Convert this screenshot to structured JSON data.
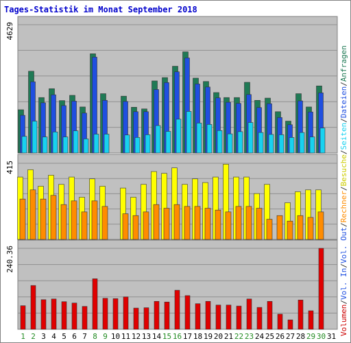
{
  "chart_data": {
    "type": "bar",
    "title": "Tages-Statistik im Monat September 2018",
    "days": [
      "1",
      "2",
      "3",
      "4",
      "5",
      "6",
      "7",
      "8",
      "9",
      "10",
      "11",
      "12",
      "13",
      "14",
      "15",
      "16",
      "17",
      "18",
      "19",
      "20",
      "21",
      "22",
      "23",
      "24",
      "25",
      "26",
      "27",
      "28",
      "29",
      "30",
      "31"
    ],
    "weekend_days": [
      "1",
      "2",
      "8",
      "9",
      "15",
      "16",
      "22",
      "23",
      "29",
      "30"
    ],
    "panels": [
      {
        "id": "top",
        "y_max_label": "4629",
        "ylim": [
          0,
          4629
        ],
        "series": [
          {
            "name": "Anfragen",
            "color": "#1f7a55",
            "values": [
              1560,
              2950,
              2000,
              2320,
              1890,
              2080,
              1660,
              3580,
              2140,
              null,
              2050,
              1650,
              1590,
              2600,
              2720,
              3130,
              3650,
              2700,
              2580,
              2180,
              2000,
              2000,
              2550,
              1900,
              1980,
              1490,
              1150,
              2140,
              1660,
              2420,
              null
            ]
          },
          {
            "name": "Dateien",
            "color": "#1f4fe0",
            "values": [
              1360,
              2570,
              1810,
              2100,
              1710,
              1870,
              1440,
              3460,
              1900,
              null,
              1860,
              1490,
              1490,
              2290,
              2540,
              2930,
              3430,
              2490,
              2380,
              1990,
              1830,
              1790,
              2110,
              1640,
              1780,
              1280,
              1020,
              1880,
              1480,
              2170,
              null
            ]
          },
          {
            "name": "Seiten",
            "color": "#18d2f0",
            "values": [
              600,
              1150,
              580,
              760,
              580,
              800,
              510,
              680,
              680,
              null,
              650,
              560,
              660,
              990,
              780,
              1220,
              1500,
              1080,
              1030,
              810,
              690,
              770,
              1100,
              740,
              670,
              660,
              560,
              740,
              580,
              900,
              null
            ]
          }
        ]
      },
      {
        "id": "middle",
        "y_max_label": "415",
        "ylim": [
          0,
          415
        ],
        "series": [
          {
            "name": "Besuche",
            "color": "#ffff00",
            "values": [
              340,
              380,
              290,
              350,
              300,
              340,
              230,
              330,
              290,
              null,
              280,
              230,
              300,
              370,
              360,
              390,
              300,
              330,
              310,
              340,
              410,
              340,
              340,
              250,
              300,
              null,
              200,
              260,
              270,
              270,
              null
            ]
          },
          {
            "name": "Rechner",
            "color": "#ff8c00",
            "values": [
              220,
              270,
              220,
              240,
              190,
              210,
              150,
              210,
              180,
              null,
              140,
              130,
              150,
              190,
              170,
              190,
              180,
              180,
              170,
              160,
              150,
              180,
              180,
              170,
              110,
              130,
              100,
              130,
              120,
              150,
              null
            ]
          }
        ]
      },
      {
        "id": "bottom",
        "y_max_label": "240.36",
        "ylim": [
          0,
          240.36
        ],
        "series": [
          {
            "name": "Volumen",
            "color": "#e00000",
            "values": [
              70,
              130,
              88,
              90,
              82,
              78,
              68,
              150,
              92,
              91,
              96,
              63,
              64,
              83,
              81,
              116,
              100,
              76,
              83,
              72,
              72,
              69,
              90,
              65,
              83,
              45,
              28,
              87,
              55,
              240.36,
              null
            ]
          }
        ]
      }
    ],
    "right_legend": [
      {
        "text": "Volumen",
        "color": "#cc0000"
      },
      {
        "text": "/",
        "color": "#333333"
      },
      {
        "text": "Vol. In",
        "color": "#1f4fe0"
      },
      {
        "text": "/",
        "color": "#333333"
      },
      {
        "text": "Vol. Out",
        "color": "#1f4fe0"
      },
      {
        "text": "/",
        "color": "#333333"
      },
      {
        "text": "Rechner",
        "color": "#ff8c00"
      },
      {
        "text": "/",
        "color": "#333333"
      },
      {
        "text": "Besuche",
        "color": "#cccc00"
      },
      {
        "text": "/",
        "color": "#333333"
      },
      {
        "text": "Seiten",
        "color": "#18d2f0"
      },
      {
        "text": "/",
        "color": "#333333"
      },
      {
        "text": "Dateien",
        "color": "#1f4fe0"
      },
      {
        "text": "/",
        "color": "#333333"
      },
      {
        "text": "Anfragen",
        "color": "#1f7a55"
      }
    ],
    "colors": {
      "plot_background": "#c0c0c0",
      "grid": "#909090",
      "title": "#0000cc",
      "weekday_label": "#000000",
      "weekend_label": "#228b22"
    }
  }
}
